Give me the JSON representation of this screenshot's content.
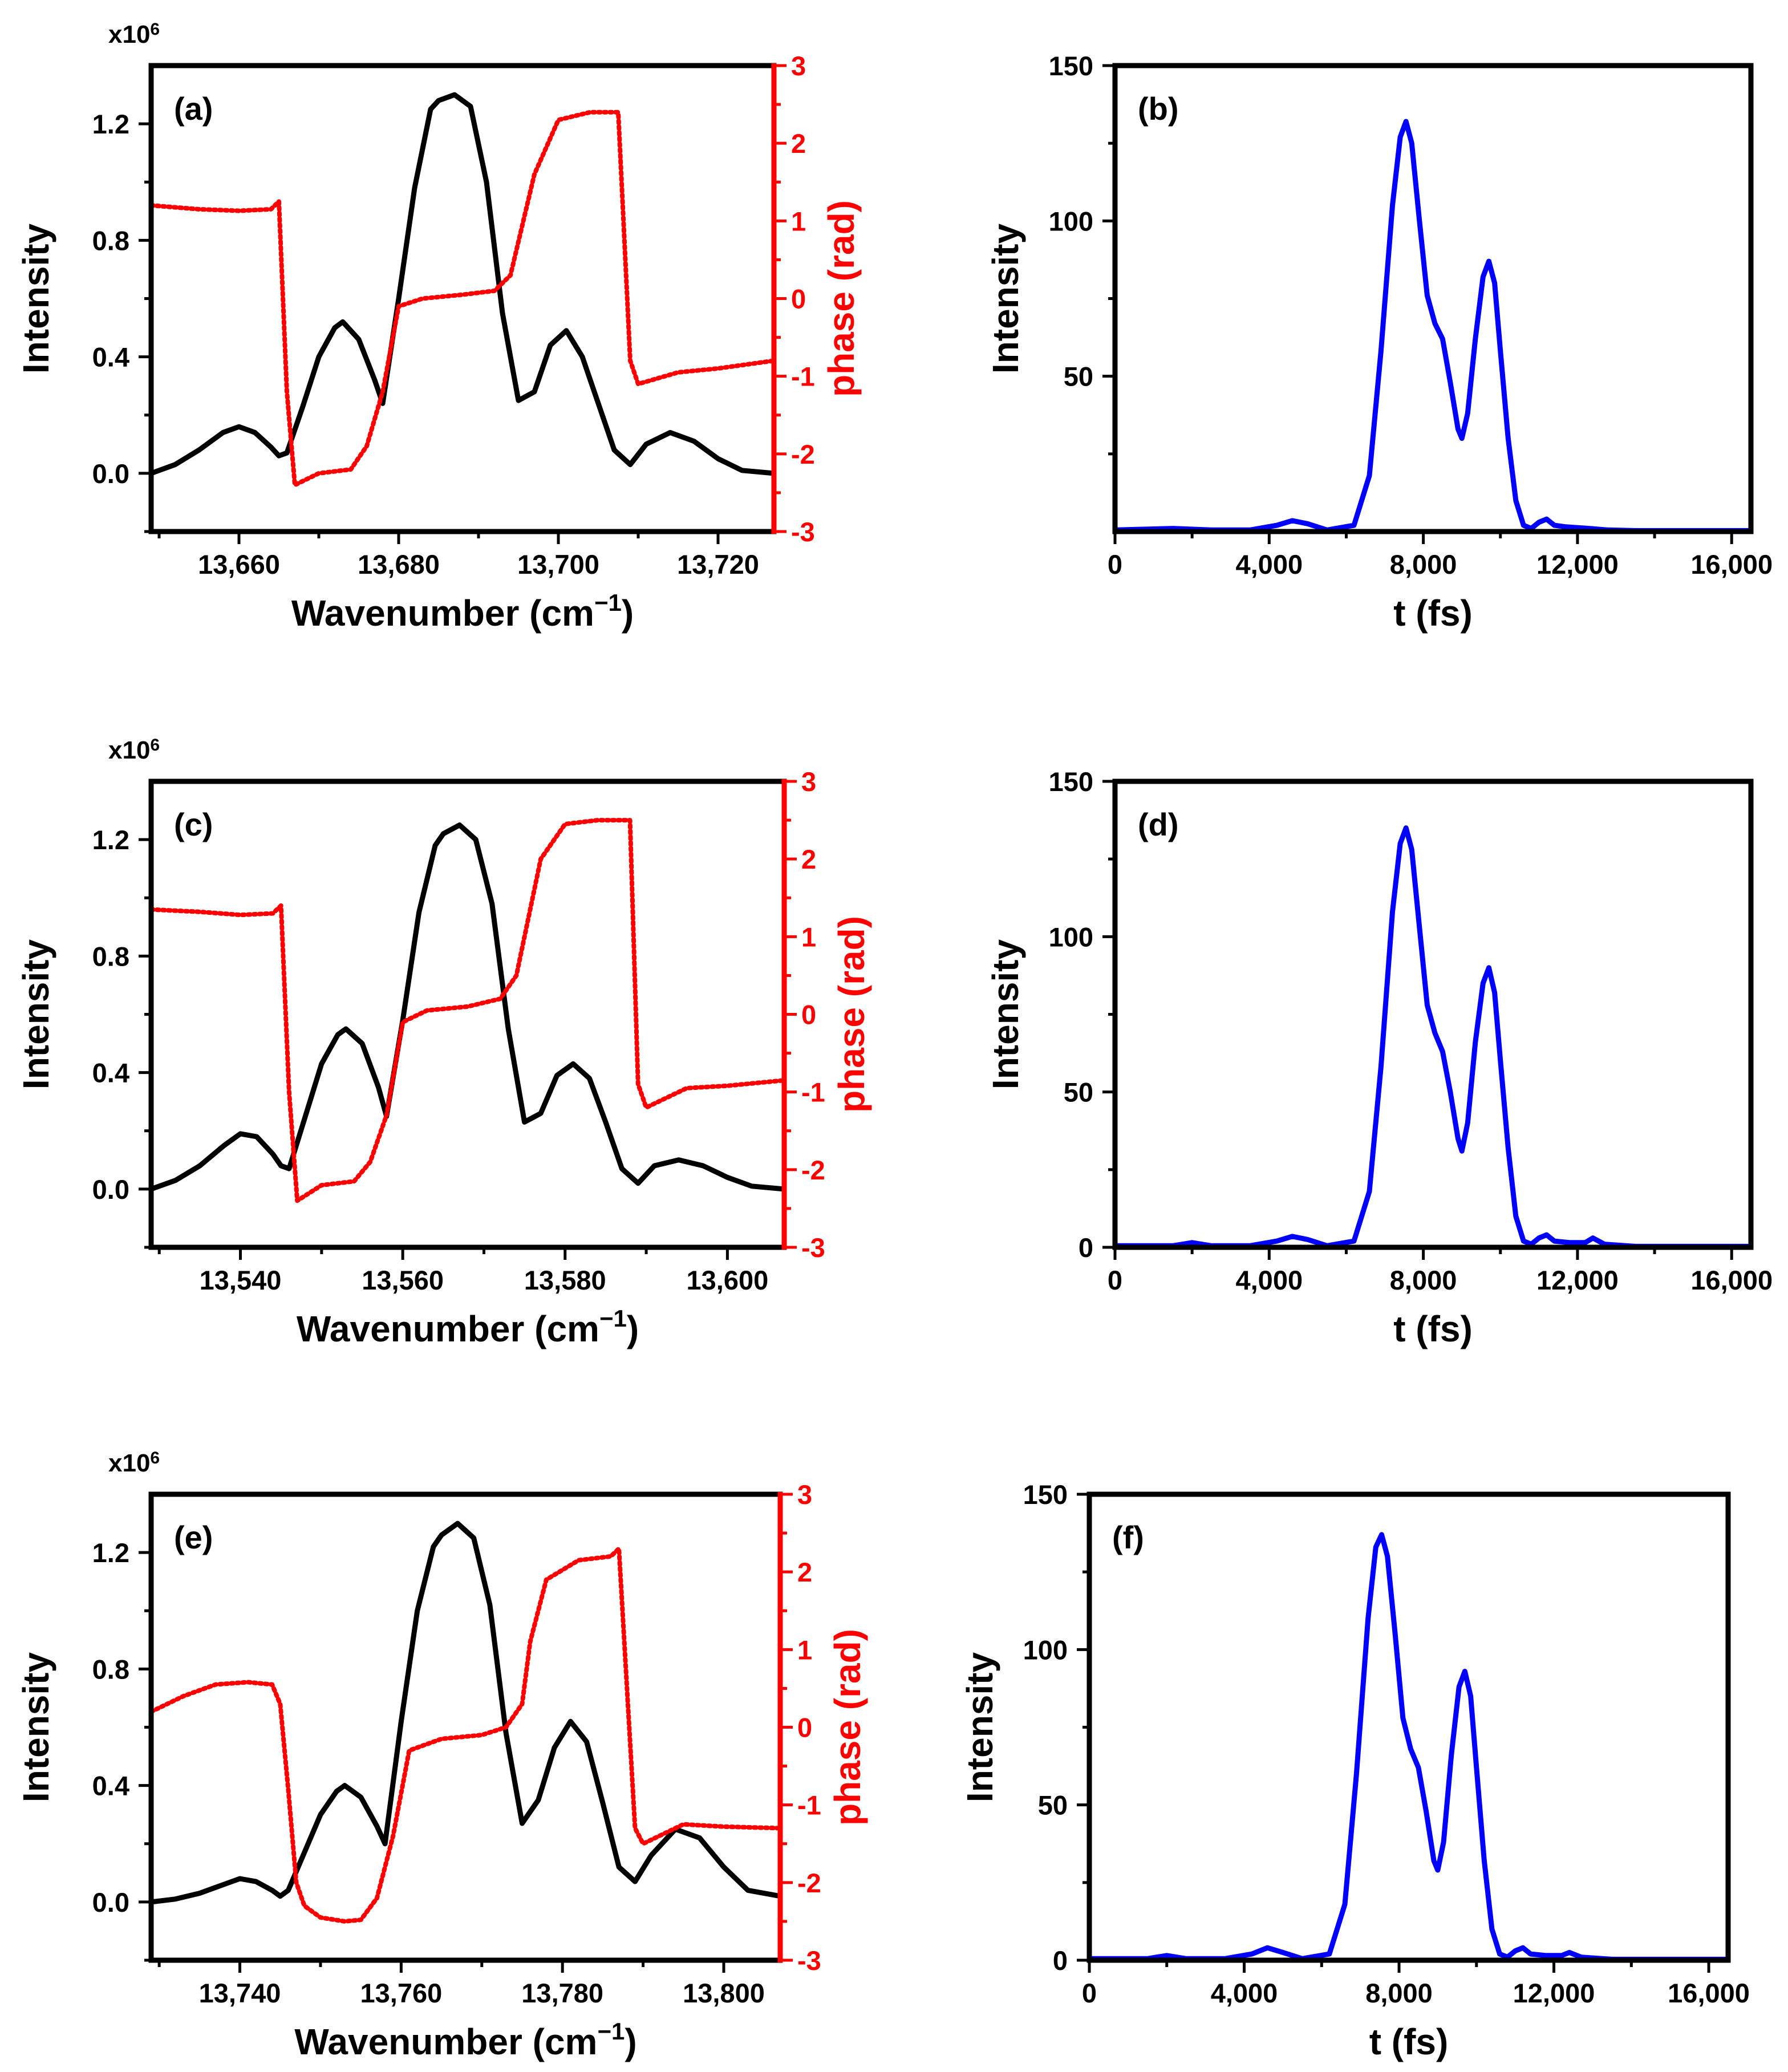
{
  "chart_data": [
    {
      "panel": "(a)",
      "type": "line",
      "title": "",
      "multiplier": "x10^6",
      "xlabel": "Wavenumber (cm⁻¹)",
      "ylabel": "Intensity",
      "y2label": "phase (rad)",
      "xlim": [
        13649,
        13727
      ],
      "ylim": [
        -0.2,
        1.4
      ],
      "y2lim": [
        -3,
        3
      ],
      "xticks": [
        13660,
        13680,
        13700,
        13720
      ],
      "xtick_labels": [
        "13,660",
        "13,680",
        "13,700",
        "13,720"
      ],
      "yticks": [
        0.0,
        0.4,
        0.8,
        1.2
      ],
      "ytick_labels": [
        "0.0",
        "0.4",
        "0.8",
        "1.2"
      ],
      "y2ticks": [
        -3,
        -2,
        -1,
        0,
        1,
        2,
        3
      ],
      "y2tick_labels": [
        "-3",
        "-2",
        "-1",
        "0",
        "1",
        "2",
        "3"
      ],
      "colors": {
        "intensity": "#000000",
        "phase": "#ff0000"
      },
      "series": [
        {
          "name": "Intensity",
          "axis": "left",
          "style": "solid",
          "x": [
            13649,
            13652,
            13655,
            13658,
            13660,
            13662,
            13664,
            13665,
            13666,
            13668,
            13670,
            13672,
            13673,
            13675,
            13677,
            13678,
            13680,
            13682,
            13684,
            13685,
            13687,
            13689,
            13691,
            13693,
            13695,
            13697,
            13699,
            13701,
            13703,
            13705,
            13707,
            13709,
            13711,
            13714,
            13717,
            13720,
            13723,
            13727
          ],
          "values": [
            0.0,
            0.03,
            0.08,
            0.14,
            0.16,
            0.14,
            0.09,
            0.06,
            0.07,
            0.23,
            0.4,
            0.5,
            0.52,
            0.46,
            0.32,
            0.24,
            0.6,
            0.98,
            1.25,
            1.28,
            1.3,
            1.26,
            1.0,
            0.55,
            0.25,
            0.28,
            0.44,
            0.49,
            0.4,
            0.24,
            0.08,
            0.03,
            0.1,
            0.14,
            0.11,
            0.05,
            0.01,
            0.0
          ]
        },
        {
          "name": "Phase",
          "axis": "right",
          "style": "dotted",
          "x": [
            13649,
            13655,
            13660,
            13664,
            13665,
            13666,
            13667,
            13670,
            13674,
            13676,
            13678,
            13680,
            13683,
            13688,
            13692,
            13694,
            13697,
            13700,
            13704,
            13707,
            13707.5,
            13709,
            13710,
            13715,
            13720,
            13727
          ],
          "values": [
            1.2,
            1.15,
            1.13,
            1.15,
            1.25,
            -1.2,
            -2.4,
            -2.25,
            -2.2,
            -1.9,
            -1.2,
            -0.1,
            0.0,
            0.05,
            0.1,
            0.3,
            1.6,
            2.3,
            2.4,
            2.4,
            2.4,
            -0.8,
            -1.1,
            -0.95,
            -0.9,
            -0.8
          ]
        }
      ]
    },
    {
      "panel": "(b)",
      "type": "line",
      "title": "",
      "xlabel": "t (fs)",
      "ylabel": "Intensity",
      "xlim": [
        0,
        16500
      ],
      "ylim": [
        0,
        150
      ],
      "xticks": [
        0,
        4000,
        8000,
        12000,
        16000
      ],
      "xtick_labels": [
        "0",
        "4,000",
        "8,000",
        "12,000",
        "16,000"
      ],
      "yticks": [
        50,
        100,
        150
      ],
      "ytick_labels": [
        "50",
        "100",
        "150"
      ],
      "colors": {
        "line": "#0000ff"
      },
      "series": [
        {
          "name": "Intensity",
          "x": [
            0,
            1500,
            2500,
            3500,
            4200,
            4600,
            5000,
            5500,
            6200,
            6600,
            6900,
            7200,
            7400,
            7550,
            7700,
            7900,
            8100,
            8300,
            8500,
            8700,
            8900,
            9000,
            9150,
            9350,
            9550,
            9700,
            9850,
            10000,
            10200,
            10400,
            10600,
            10800,
            11000,
            11200,
            11400,
            11700,
            12300,
            12800,
            13500,
            16500
          ],
          "values": [
            0.5,
            1,
            0.5,
            0.5,
            2,
            3.5,
            2.5,
            0.5,
            2,
            18,
            58,
            105,
            127,
            132,
            125,
            100,
            76,
            67,
            62,
            48,
            33,
            30,
            38,
            62,
            82,
            87,
            80,
            58,
            30,
            10,
            2,
            1,
            3,
            4,
            2,
            1.5,
            1,
            0.5,
            0.3,
            0.3
          ]
        }
      ]
    },
    {
      "panel": "(c)",
      "type": "line",
      "title": "",
      "multiplier": "x10^6",
      "xlabel": "Wavenumber (cm⁻¹)",
      "ylabel": "Intensity",
      "y2label": "phase (rad)",
      "xlim": [
        13529,
        13607
      ],
      "ylim": [
        -0.2,
        1.4
      ],
      "y2lim": [
        -3,
        3
      ],
      "xticks": [
        13540,
        13560,
        13580,
        13600
      ],
      "xtick_labels": [
        "13,540",
        "13,560",
        "13,580",
        "13,600"
      ],
      "yticks": [
        0.0,
        0.4,
        0.8,
        1.2
      ],
      "ytick_labels": [
        "0.0",
        "0.4",
        "0.8",
        "1.2"
      ],
      "y2ticks": [
        -3,
        -2,
        -1,
        0,
        1,
        2,
        3
      ],
      "y2tick_labels": [
        "-3",
        "-2",
        "-1",
        "0",
        "1",
        "2",
        "3"
      ],
      "colors": {
        "intensity": "#000000",
        "phase": "#ff0000"
      },
      "series": [
        {
          "name": "Intensity",
          "axis": "left",
          "style": "solid",
          "x": [
            13529,
            13532,
            13535,
            13538,
            13540,
            13542,
            13544,
            13545,
            13546,
            13548,
            13550,
            13552,
            13553,
            13555,
            13557,
            13558,
            13560,
            13562,
            13564,
            13565,
            13567,
            13569,
            13571,
            13573,
            13575,
            13577,
            13579,
            13581,
            13583,
            13585,
            13587,
            13589,
            13591,
            13594,
            13597,
            13600,
            13603,
            13607
          ],
          "values": [
            0.0,
            0.03,
            0.08,
            0.15,
            0.19,
            0.18,
            0.12,
            0.08,
            0.07,
            0.25,
            0.43,
            0.53,
            0.55,
            0.5,
            0.35,
            0.25,
            0.58,
            0.95,
            1.18,
            1.22,
            1.25,
            1.2,
            0.98,
            0.55,
            0.23,
            0.26,
            0.39,
            0.43,
            0.38,
            0.23,
            0.07,
            0.02,
            0.08,
            0.1,
            0.08,
            0.04,
            0.01,
            0.0
          ]
        },
        {
          "name": "Phase",
          "axis": "right",
          "style": "dotted",
          "x": [
            13529,
            13535,
            13540,
            13544,
            13545,
            13546,
            13547,
            13550,
            13554,
            13556,
            13558,
            13560,
            13563,
            13568,
            13572,
            13574,
            13577,
            13580,
            13584,
            13587,
            13588,
            13589,
            13590,
            13595,
            13600,
            13607
          ],
          "values": [
            1.35,
            1.32,
            1.28,
            1.3,
            1.4,
            -1.0,
            -2.4,
            -2.2,
            -2.15,
            -1.9,
            -1.3,
            -0.1,
            0.05,
            0.1,
            0.2,
            0.5,
            2.0,
            2.45,
            2.5,
            2.5,
            2.5,
            -0.9,
            -1.2,
            -0.95,
            -0.92,
            -0.85
          ]
        }
      ]
    },
    {
      "panel": "(d)",
      "type": "line",
      "title": "",
      "xlabel": "t (fs)",
      "ylabel": "Intensity",
      "xlim": [
        0,
        16500
      ],
      "ylim": [
        0,
        150
      ],
      "xticks": [
        0,
        4000,
        8000,
        12000,
        16000
      ],
      "xtick_labels": [
        "0",
        "4,000",
        "8,000",
        "12,000",
        "16,000"
      ],
      "yticks": [
        0,
        50,
        100,
        150
      ],
      "ytick_labels": [
        "0",
        "50",
        "100",
        "150"
      ],
      "colors": {
        "line": "#0000ff"
      },
      "series": [
        {
          "name": "Intensity",
          "x": [
            0,
            1500,
            2000,
            2500,
            3500,
            4200,
            4600,
            5000,
            5500,
            6200,
            6600,
            6900,
            7200,
            7400,
            7550,
            7700,
            7900,
            8100,
            8300,
            8500,
            8700,
            8900,
            9000,
            9150,
            9350,
            9550,
            9700,
            9850,
            10000,
            10200,
            10400,
            10600,
            10800,
            11000,
            11200,
            11400,
            11800,
            12200,
            12400,
            12700,
            13500,
            16500
          ],
          "values": [
            0.5,
            0.5,
            1.5,
            0.5,
            0.5,
            2,
            3.5,
            2.5,
            0.5,
            2,
            18,
            58,
            108,
            130,
            135,
            128,
            103,
            78,
            69,
            63,
            50,
            35,
            31,
            40,
            66,
            85,
            90,
            82,
            60,
            32,
            10,
            2,
            1,
            3,
            4,
            2,
            1.5,
            1.5,
            3,
            1,
            0.3,
            0.3
          ]
        }
      ]
    },
    {
      "panel": "(e)",
      "type": "line",
      "title": "",
      "multiplier": "x10^6",
      "xlabel": "Wavenumber (cm⁻¹)",
      "ylabel": "Intensity",
      "y2label": "phase (rad)",
      "xlim": [
        13729,
        13807
      ],
      "ylim": [
        -0.2,
        1.4
      ],
      "y2lim": [
        -3,
        3
      ],
      "xticks": [
        13740,
        13760,
        13780,
        13800
      ],
      "xtick_labels": [
        "13,740",
        "13,760",
        "13,780",
        "13,800"
      ],
      "yticks": [
        0.0,
        0.4,
        0.8,
        1.2
      ],
      "ytick_labels": [
        "0.0",
        "0.4",
        "0.8",
        "1.2"
      ],
      "y2ticks": [
        -3,
        -2,
        -1,
        0,
        1,
        2,
        3
      ],
      "y2tick_labels": [
        "-3",
        "-2",
        "-1",
        "0",
        "1",
        "2",
        "3"
      ],
      "colors": {
        "intensity": "#000000",
        "phase": "#ff0000"
      },
      "series": [
        {
          "name": "Intensity",
          "axis": "left",
          "style": "solid",
          "x": [
            13729,
            13732,
            13735,
            13738,
            13740,
            13742,
            13744,
            13745,
            13746,
            13748,
            13750,
            13752,
            13753,
            13755,
            13757,
            13758,
            13760,
            13762,
            13764,
            13765,
            13767,
            13769,
            13771,
            13773,
            13775,
            13777,
            13779,
            13781,
            13783,
            13785,
            13787,
            13789,
            13791,
            13794,
            13797,
            13800,
            13803,
            13807
          ],
          "values": [
            0.0,
            0.01,
            0.03,
            0.06,
            0.08,
            0.07,
            0.04,
            0.02,
            0.04,
            0.17,
            0.3,
            0.38,
            0.4,
            0.36,
            0.26,
            0.2,
            0.62,
            1.0,
            1.22,
            1.26,
            1.3,
            1.25,
            1.02,
            0.58,
            0.27,
            0.35,
            0.53,
            0.62,
            0.55,
            0.34,
            0.12,
            0.07,
            0.16,
            0.25,
            0.22,
            0.12,
            0.04,
            0.02
          ]
        },
        {
          "name": "Phase",
          "axis": "right",
          "style": "dotted",
          "x": [
            13729,
            13733,
            13737,
            13741,
            13744,
            13745,
            13746,
            13747,
            13748,
            13750,
            13753,
            13755,
            13757,
            13759,
            13761,
            13765,
            13770,
            13773,
            13775,
            13776,
            13778,
            13782,
            13786,
            13787,
            13789,
            13790,
            13795,
            13800,
            13807
          ],
          "values": [
            0.2,
            0.4,
            0.55,
            0.58,
            0.55,
            0.3,
            -0.8,
            -2.0,
            -2.3,
            -2.45,
            -2.5,
            -2.48,
            -2.2,
            -1.4,
            -0.3,
            -0.15,
            -0.1,
            0.0,
            0.3,
            1.1,
            1.9,
            2.15,
            2.2,
            2.3,
            -1.3,
            -1.5,
            -1.25,
            -1.28,
            -1.3
          ]
        }
      ]
    },
    {
      "panel": "(f)",
      "type": "line",
      "title": "",
      "xlabel": "t (fs)",
      "ylabel": "Intensity",
      "xlim": [
        0,
        16500
      ],
      "ylim": [
        0,
        150
      ],
      "xticks": [
        0,
        4000,
        8000,
        12000,
        16000
      ],
      "xtick_labels": [
        "0",
        "4,000",
        "8,000",
        "12,000",
        "16,000"
      ],
      "yticks": [
        0,
        50,
        100,
        150
      ],
      "ytick_labels": [
        "0",
        "50",
        "100",
        "150"
      ],
      "colors": {
        "line": "#0000ff"
      },
      "series": [
        {
          "name": "Intensity",
          "x": [
            0,
            1500,
            2000,
            2500,
            3500,
            4200,
            4600,
            5000,
            5500,
            6200,
            6600,
            6900,
            7200,
            7400,
            7550,
            7700,
            7900,
            8100,
            8300,
            8500,
            8700,
            8900,
            9000,
            9150,
            9350,
            9550,
            9700,
            9850,
            10000,
            10200,
            10400,
            10600,
            10800,
            11000,
            11200,
            11400,
            11800,
            12200,
            12400,
            12700,
            13500,
            16500
          ],
          "values": [
            0.5,
            0.5,
            1.5,
            0.5,
            0.5,
            2,
            4,
            2.5,
            0.5,
            2,
            18,
            60,
            110,
            133,
            137,
            130,
            105,
            78,
            68,
            62,
            48,
            32,
            29,
            38,
            66,
            88,
            93,
            85,
            62,
            32,
            10,
            2,
            1,
            3,
            4,
            2,
            1.5,
            1.5,
            2.5,
            1,
            0.3,
            0.3
          ]
        }
      ]
    }
  ]
}
